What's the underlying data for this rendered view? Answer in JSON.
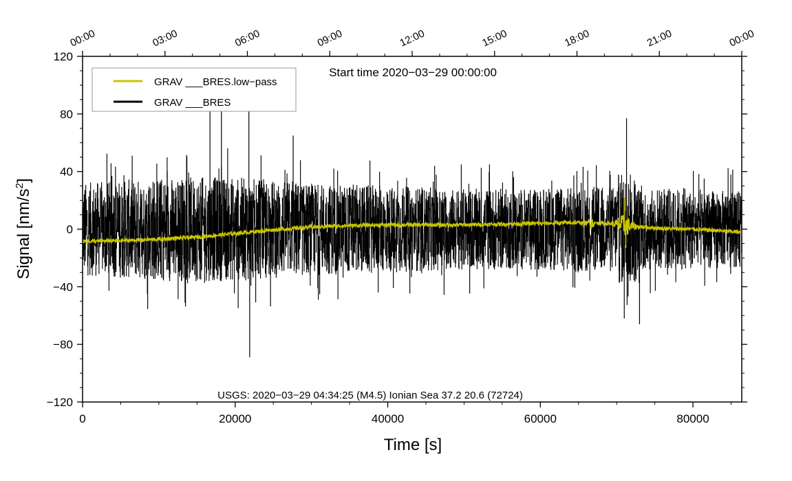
{
  "chart_data": {
    "type": "line",
    "x_range": [
      0,
      86400
    ],
    "ylim": [
      -120,
      120
    ],
    "xlabel": "Time [s]",
    "ylabel": "Signal [nm/s²]",
    "ylabel_main": "Signal [nm/s",
    "ylabel_sup": "2",
    "ylabel_end": "]",
    "x_ticks": [
      "0",
      "20000",
      "40000",
      "60000",
      "80000"
    ],
    "x_tick_values": [
      0,
      20000,
      40000,
      60000,
      80000
    ],
    "y_ticks": [
      "120",
      "80",
      "40",
      "0",
      "−40",
      "−80",
      "−120"
    ],
    "y_tick_values": [
      120,
      80,
      40,
      0,
      -40,
      -80,
      -120
    ],
    "top_ticks": [
      "00:00",
      "03:00",
      "06:00",
      "09:00",
      "12:00",
      "15:00",
      "18:00",
      "21:00",
      "00:00"
    ],
    "top_tick_values": [
      0,
      10800,
      21600,
      32400,
      43200,
      54000,
      64800,
      75600,
      86400
    ],
    "start_time_label": "Start time 2020−03−29 00:00:00",
    "event_annotation": "USGS: 2020−03−29 04:34:25 (M4.5) Ionian Sea 37.2 20.6 (72724)",
    "legend_position": "top-left",
    "series": [
      {
        "name": "GRAV ___BRES.low−pass",
        "color": "#c8c400",
        "description": "smooth low-pass trend",
        "trend_points": [
          [
            0,
            -8.5
          ],
          [
            5000,
            -8
          ],
          [
            10000,
            -7
          ],
          [
            15000,
            -5.5
          ],
          [
            20000,
            -3
          ],
          [
            25000,
            -0.5
          ],
          [
            30000,
            1.5
          ],
          [
            35000,
            2.5
          ],
          [
            40000,
            3
          ],
          [
            45000,
            3
          ],
          [
            50000,
            3
          ],
          [
            55000,
            3.5
          ],
          [
            60000,
            4
          ],
          [
            65000,
            4.5
          ],
          [
            69000,
            4
          ],
          [
            72000,
            2
          ],
          [
            76000,
            0.5
          ],
          [
            80000,
            0
          ],
          [
            86400,
            -2
          ]
        ],
        "spikes": [
          [
            66700,
            10
          ],
          [
            71000,
            22
          ],
          [
            71200,
            -13
          ]
        ]
      },
      {
        "name": "GRAV ___BRES",
        "color": "#000000",
        "description": "raw noisy gravity signal",
        "envelope_points": [
          [
            0,
            32
          ],
          [
            10000,
            36
          ],
          [
            20000,
            36
          ],
          [
            30000,
            32
          ],
          [
            40000,
            30
          ],
          [
            50000,
            28
          ],
          [
            60000,
            28
          ],
          [
            70000,
            30
          ],
          [
            86400,
            26
          ]
        ],
        "spikes": [
          [
            16700,
            84
          ],
          [
            18200,
            84
          ],
          [
            21900,
            -89
          ],
          [
            21800,
            84
          ],
          [
            27600,
            65
          ],
          [
            71300,
            77
          ],
          [
            71000,
            -62
          ],
          [
            73000,
            -66
          ]
        ]
      }
    ]
  }
}
